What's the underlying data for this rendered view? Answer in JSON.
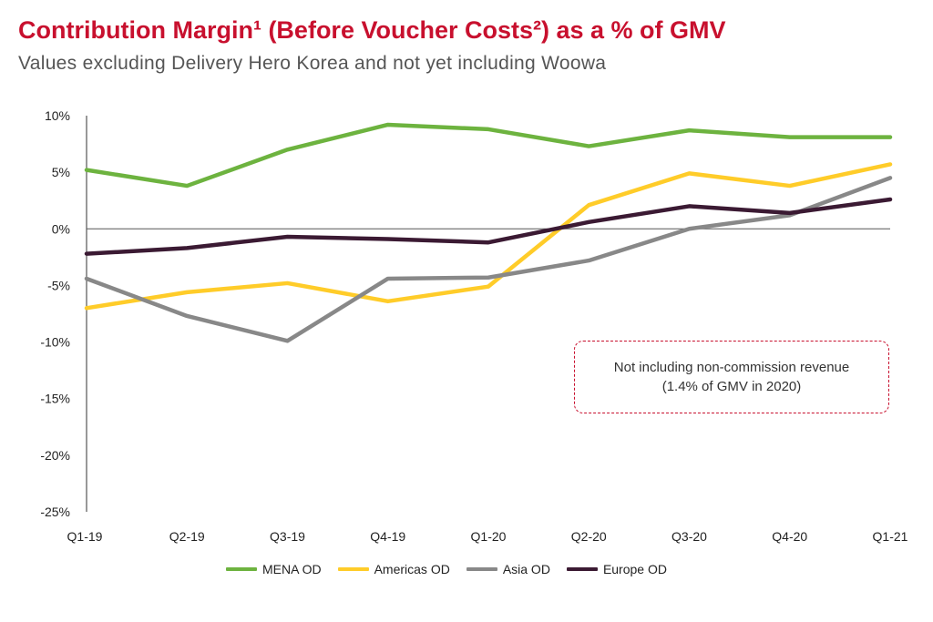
{
  "title": "Contribution Margin¹ (Before Voucher Costs²) as a % of GMV",
  "subtitle": "Values excluding Delivery Hero Korea and not yet including Woowa",
  "annotation": {
    "line1": "Not including non-commission revenue",
    "line2": "(1.4% of GMV in 2020)"
  },
  "colors": {
    "mena": "#6db33f",
    "americas": "#ffcc29",
    "asia": "#888888",
    "europe": "#3b1a33",
    "accent": "#c8102e"
  },
  "chart_data": {
    "type": "line",
    "title": "Contribution Margin¹ (Before Voucher Costs²) as a % of GMV",
    "xlabel": "",
    "ylabel": "",
    "ylim": [
      -25,
      10
    ],
    "yticks": [
      10,
      5,
      0,
      -5,
      -10,
      -15,
      -20,
      -25
    ],
    "ytick_labels": [
      "10%",
      "5%",
      "0%",
      "-5%",
      "-10%",
      "-15%",
      "-20%",
      "-25%"
    ],
    "categories": [
      "Q1-19",
      "Q2-19",
      "Q3-19",
      "Q4-19",
      "Q1-20",
      "Q2-20",
      "Q3-20",
      "Q4-20",
      "Q1-21"
    ],
    "legend_position": "bottom",
    "series": [
      {
        "name": "MENA OD",
        "key": "mena",
        "values": [
          5.2,
          3.8,
          7.0,
          9.2,
          8.8,
          7.3,
          8.7,
          8.1,
          8.1
        ]
      },
      {
        "name": "Americas OD",
        "key": "americas",
        "values": [
          -7.0,
          -5.6,
          -4.8,
          -6.4,
          -5.1,
          2.1,
          4.9,
          3.8,
          5.7
        ]
      },
      {
        "name": "Asia OD",
        "key": "asia",
        "values": [
          -4.4,
          -7.7,
          -9.9,
          -4.4,
          -4.3,
          -2.8,
          0.0,
          1.2,
          4.5
        ]
      },
      {
        "name": "Europe OD",
        "key": "europe",
        "values": [
          -2.2,
          -1.7,
          -0.7,
          -0.9,
          -1.2,
          0.6,
          2.0,
          1.4,
          2.6
        ]
      }
    ]
  }
}
